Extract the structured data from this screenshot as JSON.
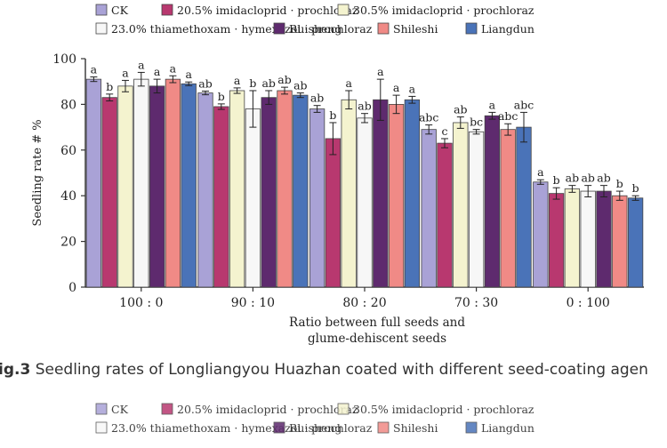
{
  "chart_data": {
    "type": "bar",
    "xlabel": [
      "Ratio between full seeds and",
      "glume-dehiscent seeds"
    ],
    "ylabel": "Seedling rate # %",
    "ylim": [
      0,
      100
    ],
    "yticks": [
      0,
      20,
      40,
      60,
      80,
      100
    ],
    "categories": [
      "100 : 0",
      "90 : 10",
      "80 : 20",
      "70 : 30",
      "0 : 100"
    ],
    "legend_position": "top",
    "series": [
      {
        "name": "CK",
        "color": "#a9a2d6",
        "values": [
          91,
          85,
          78,
          69,
          46
        ],
        "errors": [
          1.0,
          0.8,
          1.5,
          2.0,
          1.0
        ],
        "letters": [
          "a",
          "ab",
          "ab",
          "abc",
          "a"
        ]
      },
      {
        "name": "20.5% imidacloprid · prochloraz",
        "color": "#b8386f",
        "values": [
          83,
          79,
          65,
          63,
          41
        ],
        "errors": [
          1.5,
          1.2,
          7.0,
          2.0,
          2.5
        ],
        "letters": [
          "b",
          "b",
          "b",
          "c",
          "b"
        ]
      },
      {
        "name": "30.5% imidacloprid · prochloraz",
        "color": "#f4f3cf",
        "values": [
          88,
          86,
          82,
          72,
          43
        ],
        "errors": [
          2.5,
          1.2,
          4.0,
          2.5,
          1.5
        ],
        "letters": [
          "a",
          "a",
          "a",
          "ab",
          "ab"
        ]
      },
      {
        "name": "23.0% thiamethoxam · hymexazol · prochloraz",
        "color": "#f7f7f7",
        "values": [
          91,
          78,
          74,
          68,
          42
        ],
        "errors": [
          3.0,
          8.0,
          2.0,
          1.0,
          2.5
        ],
        "letters": [
          "a",
          "b",
          "ab",
          "bc",
          "ab"
        ]
      },
      {
        "name": "Ruisheng",
        "color": "#5e2a6e",
        "values": [
          88,
          83,
          82,
          75,
          42
        ],
        "errors": [
          3.0,
          3.0,
          9.0,
          1.5,
          2.5
        ],
        "letters": [
          "a",
          "ab",
          "a",
          "a",
          "ab"
        ]
      },
      {
        "name": "Shileshi",
        "color": "#f08a86",
        "values": [
          91,
          86,
          80,
          69,
          40
        ],
        "errors": [
          1.5,
          1.5,
          4.0,
          2.5,
          2.0
        ],
        "letters": [
          "a",
          "ab",
          "a",
          "abc",
          "b"
        ]
      },
      {
        "name": "Liangdun",
        "color": "#4a73b8",
        "values": [
          89,
          84,
          82,
          70,
          39
        ],
        "errors": [
          0.8,
          1.0,
          1.5,
          6.5,
          1.0
        ],
        "letters": [
          "a",
          "ab",
          "a",
          "abc",
          "b"
        ]
      }
    ]
  },
  "caption": {
    "label": "ig.3",
    "text": " Seedling rates of Longliangyou Huazhan coated with different seed-coating agen"
  }
}
